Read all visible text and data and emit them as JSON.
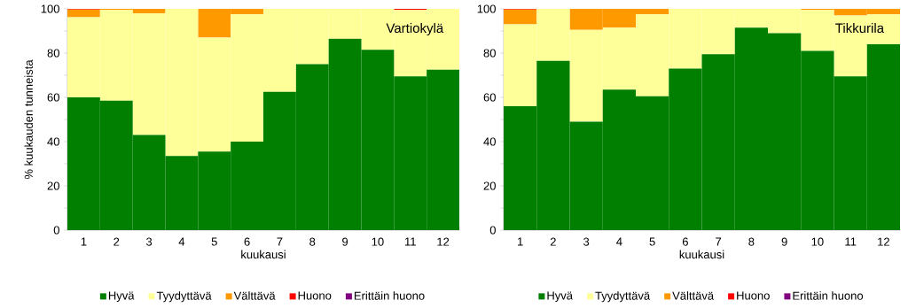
{
  "chart_data": [
    {
      "type": "bar",
      "stacked": true,
      "title": "Vartiokylä",
      "xlabel": "kuukausi",
      "ylabel": "% kuukauden tunneista",
      "categories": [
        "1",
        "2",
        "3",
        "4",
        "5",
        "6",
        "7",
        "8",
        "9",
        "10",
        "11",
        "12"
      ],
      "ylim": [
        0,
        100
      ],
      "yticks": [
        0,
        {
          "value": 10,
          "label": null
        },
        20,
        {
          "value": 30,
          "label": null
        },
        40,
        {
          "value": 50,
          "label": null
        },
        60,
        {
          "value": 70,
          "label": null
        },
        80,
        {
          "value": 90,
          "label": null
        },
        100
      ],
      "legend": "bottom",
      "series": [
        {
          "name": "Hyvä",
          "color": "#007f00",
          "values": [
            60,
            58.5,
            43,
            33.5,
            35.5,
            40,
            62.5,
            75,
            86.5,
            81.5,
            69.5,
            72.5
          ]
        },
        {
          "name": "Tyydyttävä",
          "color": "#ffff99",
          "values": [
            36.2,
            41,
            55,
            66.5,
            51.5,
            57.5,
            37.5,
            25,
            13.5,
            18.5,
            30.1,
            27.5
          ]
        },
        {
          "name": "Välttävä",
          "color": "#ff9900",
          "values": [
            3.5,
            0.5,
            2,
            0,
            13,
            2.5,
            0,
            0,
            0,
            0,
            0,
            0
          ]
        },
        {
          "name": "Huono",
          "color": "#ff0000",
          "values": [
            0.3,
            0,
            0,
            0,
            0,
            0,
            0,
            0,
            0,
            0,
            0.4,
            0
          ]
        },
        {
          "name": "Erittäin huono",
          "color": "#800080",
          "values": [
            0,
            0,
            0,
            0,
            0,
            0,
            0,
            0,
            0,
            0,
            0,
            0
          ]
        }
      ]
    },
    {
      "type": "bar",
      "stacked": true,
      "title": "Tikkurila",
      "xlabel": "kuukausi",
      "categories": [
        "1",
        "2",
        "3",
        "4",
        "5",
        "6",
        "7",
        "8",
        "9",
        "10",
        "11",
        "12"
      ],
      "ylim": [
        0,
        100
      ],
      "yticks": [
        0,
        {
          "value": 10,
          "label": null
        },
        20,
        {
          "value": 30,
          "label": null
        },
        40,
        {
          "value": 50,
          "label": null
        },
        60,
        {
          "value": 70,
          "label": null
        },
        80,
        {
          "value": 90,
          "label": null
        },
        100
      ],
      "legend": "bottom",
      "series": [
        {
          "name": "Hyvä",
          "color": "#007f00",
          "values": [
            56,
            76.5,
            49,
            63.5,
            60.5,
            73,
            79.5,
            91.5,
            89,
            81,
            69.5,
            84
          ]
        },
        {
          "name": "Tyydyttävä",
          "color": "#ffff99",
          "values": [
            37,
            23.5,
            41.5,
            28,
            37,
            27,
            20.5,
            8.5,
            11,
            18.5,
            27.5,
            13.5
          ]
        },
        {
          "name": "Välttävä",
          "color": "#ff9900",
          "values": [
            6.7,
            0,
            9.5,
            8.5,
            2.5,
            0,
            0,
            0,
            0,
            0.5,
            3,
            2.5
          ]
        },
        {
          "name": "Huono",
          "color": "#ff0000",
          "values": [
            0.3,
            0,
            0,
            0,
            0,
            0,
            0,
            0,
            0,
            0,
            0,
            0
          ]
        },
        {
          "name": "Erittäin huono",
          "color": "#800080",
          "values": [
            0,
            0,
            0,
            0,
            0,
            0,
            0,
            0,
            0,
            0,
            0,
            0
          ]
        }
      ]
    }
  ]
}
